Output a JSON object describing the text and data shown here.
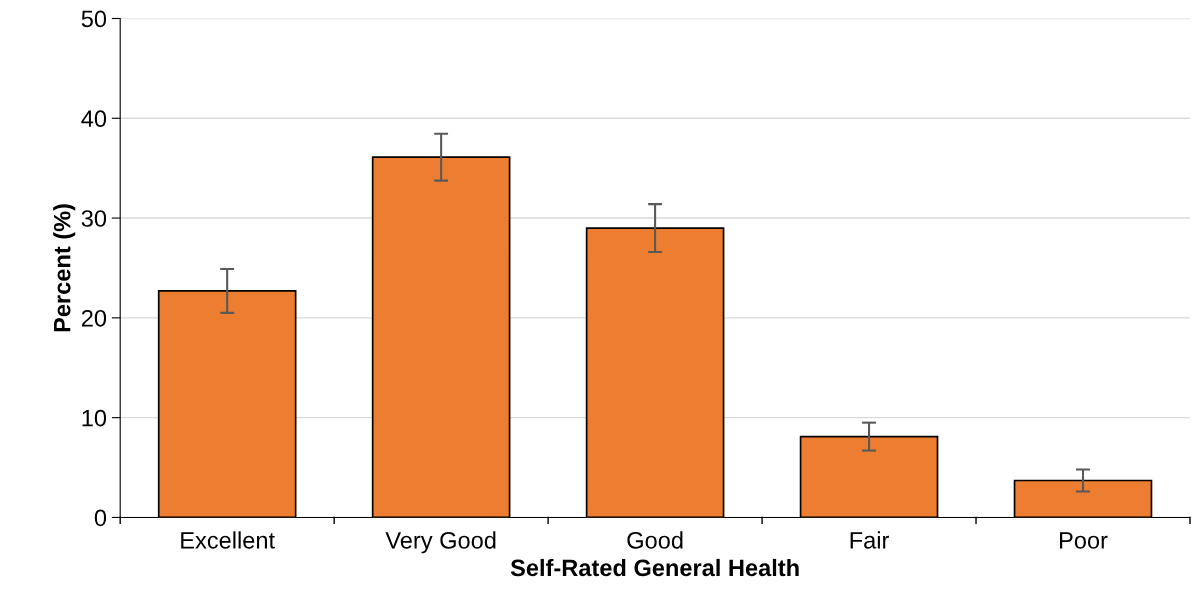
{
  "chart_data": {
    "type": "bar",
    "xlabel": "Self-Rated General Health",
    "ylabel": "Percent (%)",
    "categories": [
      "Excellent",
      "Very Good",
      "Good",
      "Fair",
      "Poor"
    ],
    "values": [
      22.7,
      36.1,
      29.0,
      8.1,
      3.7
    ],
    "errors": [
      2.2,
      2.35,
      2.4,
      1.4,
      1.1
    ],
    "color": "#ed7d31",
    "ylim": [
      0,
      50
    ],
    "yticks": [
      0,
      10,
      20,
      30,
      40,
      50
    ],
    "grid": "y"
  }
}
